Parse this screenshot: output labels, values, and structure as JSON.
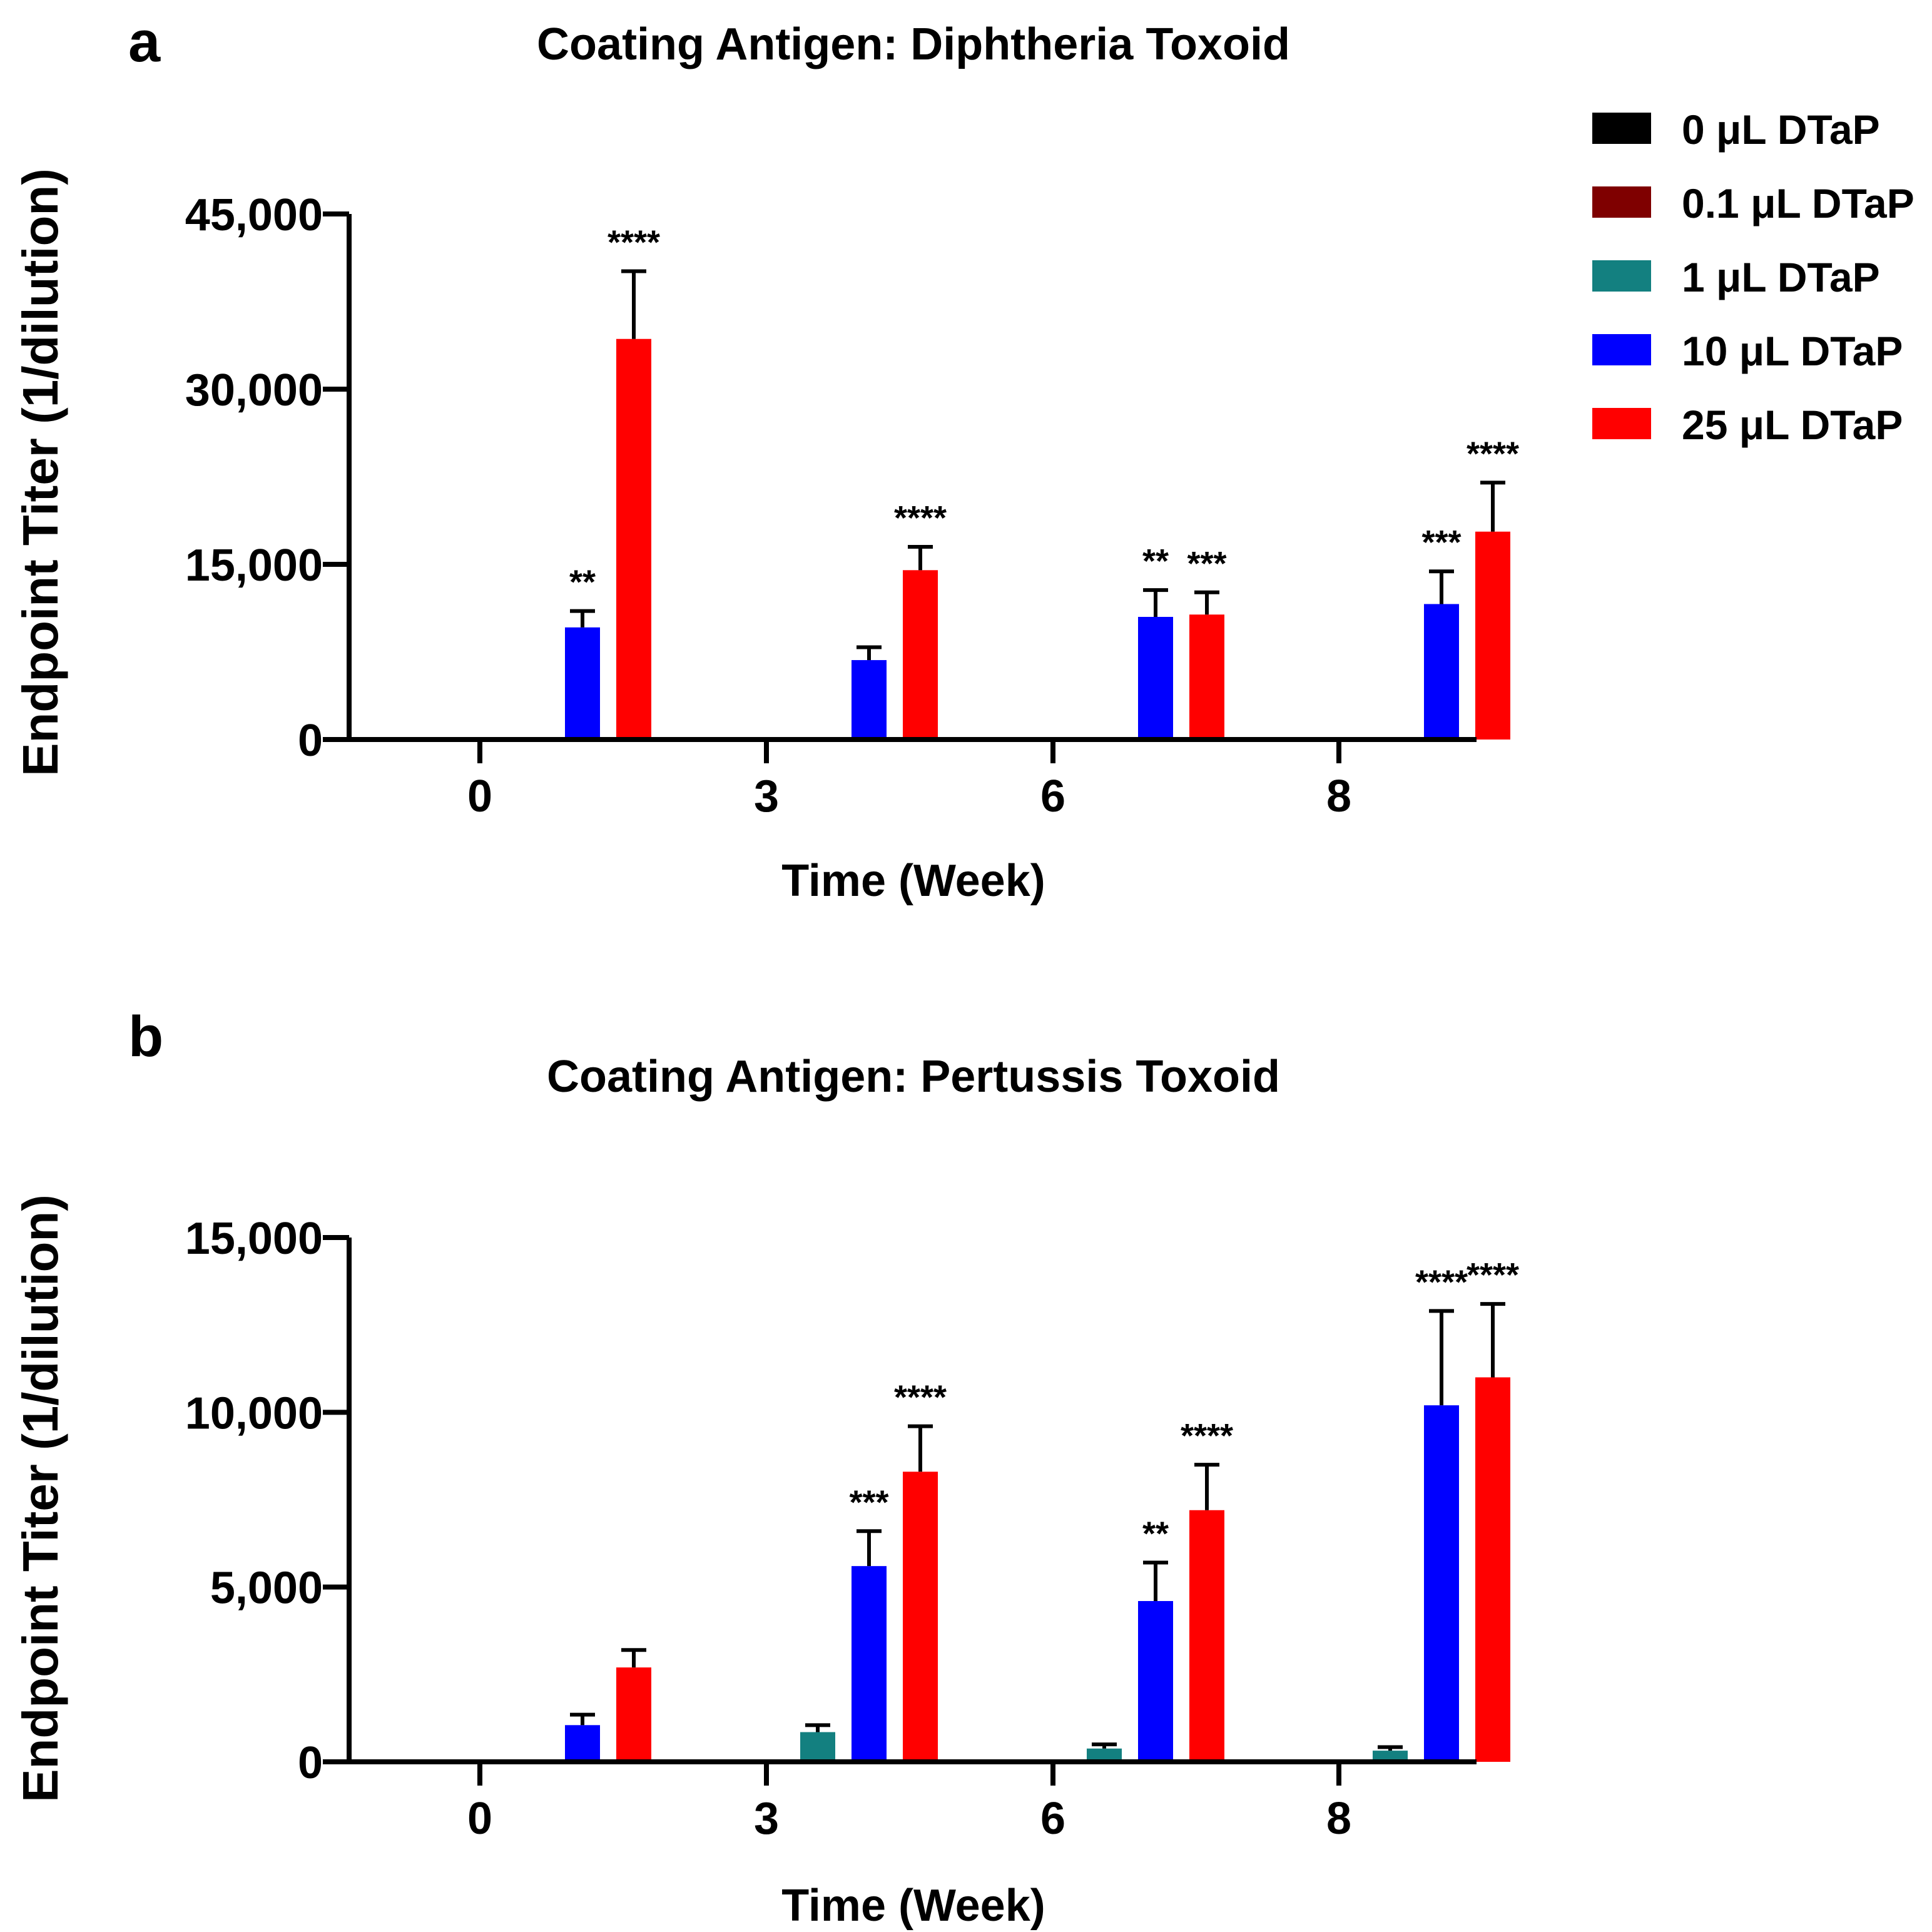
{
  "legend": [
    {
      "label": "0 μL DTaP",
      "color": "#000000"
    },
    {
      "label": "0.1 μL DTaP",
      "color": "#7f0000"
    },
    {
      "label": "1 μL DTaP",
      "color": "#138080"
    },
    {
      "label": "10 μL DTaP",
      "color": "#0000ff"
    },
    {
      "label": "25 μL DTaP",
      "color": "#ff0000"
    }
  ],
  "chart_data": [
    {
      "type": "bar",
      "panel_letter": "a",
      "title": "Coating Antigen: Diphtheria Toxoid",
      "xlabel": "Time (Week)",
      "ylabel": "Endpoint Titer (1/dilution)",
      "ylim": [
        0,
        45000
      ],
      "yticks": [
        0,
        15000,
        30000,
        45000
      ],
      "ytick_labels": [
        "0",
        "15,000",
        "30,000",
        "45,000"
      ],
      "categories": [
        "0",
        "3",
        "6",
        "8"
      ],
      "series": [
        {
          "name": "0 μL DTaP",
          "values": [
            0,
            0,
            0,
            0
          ],
          "errors": [
            0,
            0,
            0,
            0
          ],
          "significance": [
            "",
            "",
            "",
            ""
          ]
        },
        {
          "name": "0.1 μL DTaP",
          "values": [
            0,
            0,
            0,
            0
          ],
          "errors": [
            0,
            0,
            0,
            0
          ],
          "significance": [
            "",
            "",
            "",
            ""
          ]
        },
        {
          "name": "1 μL DTaP",
          "values": [
            100,
            0,
            150,
            150
          ],
          "errors": [
            0,
            0,
            0,
            0
          ],
          "significance": [
            "",
            "",
            "",
            ""
          ]
        },
        {
          "name": "10 μL DTaP",
          "values": [
            9600,
            6800,
            10500,
            11600
          ],
          "errors": [
            1400,
            1100,
            2300,
            2800
          ],
          "significance": [
            "**",
            "",
            "**",
            "***"
          ]
        },
        {
          "name": "25 μL DTaP",
          "values": [
            34300,
            14500,
            10700,
            17800
          ],
          "errors": [
            5800,
            2000,
            1900,
            4200
          ],
          "significance": [
            "****",
            "****",
            "***",
            "****"
          ]
        }
      ]
    },
    {
      "type": "bar",
      "panel_letter": "b",
      "title": "Coating Antigen: Pertussis Toxoid",
      "xlabel": "Time (Week)",
      "ylabel": "Endpoint Titer (1/dilution)",
      "ylim": [
        0,
        15000
      ],
      "yticks": [
        0,
        5000,
        10000,
        15000
      ],
      "ytick_labels": [
        "0",
        "5,000",
        "10,000",
        "15,000"
      ],
      "categories": [
        "0",
        "3",
        "6",
        "8"
      ],
      "series": [
        {
          "name": "0 μL DTaP",
          "values": [
            0,
            0,
            0,
            0
          ],
          "errors": [
            0,
            0,
            0,
            0
          ],
          "significance": [
            "",
            "",
            "",
            ""
          ]
        },
        {
          "name": "0.1 μL DTaP",
          "values": [
            0,
            0,
            30,
            0
          ],
          "errors": [
            0,
            0,
            0,
            0
          ],
          "significance": [
            "",
            "",
            "",
            ""
          ]
        },
        {
          "name": "1 μL DTaP",
          "values": [
            30,
            850,
            380,
            320
          ],
          "errors": [
            0,
            200,
            120,
            100
          ],
          "significance": [
            "",
            "",
            "",
            ""
          ]
        },
        {
          "name": "10 μL DTaP",
          "values": [
            1050,
            5600,
            4600,
            10200
          ],
          "errors": [
            300,
            1000,
            1100,
            2700
          ],
          "significance": [
            "",
            "***",
            "**",
            "****"
          ]
        },
        {
          "name": "25 μL DTaP",
          "values": [
            2700,
            8300,
            7200,
            11000
          ],
          "errors": [
            500,
            1300,
            1300,
            2100
          ],
          "significance": [
            "",
            "****",
            "****",
            "****"
          ]
        }
      ]
    }
  ]
}
